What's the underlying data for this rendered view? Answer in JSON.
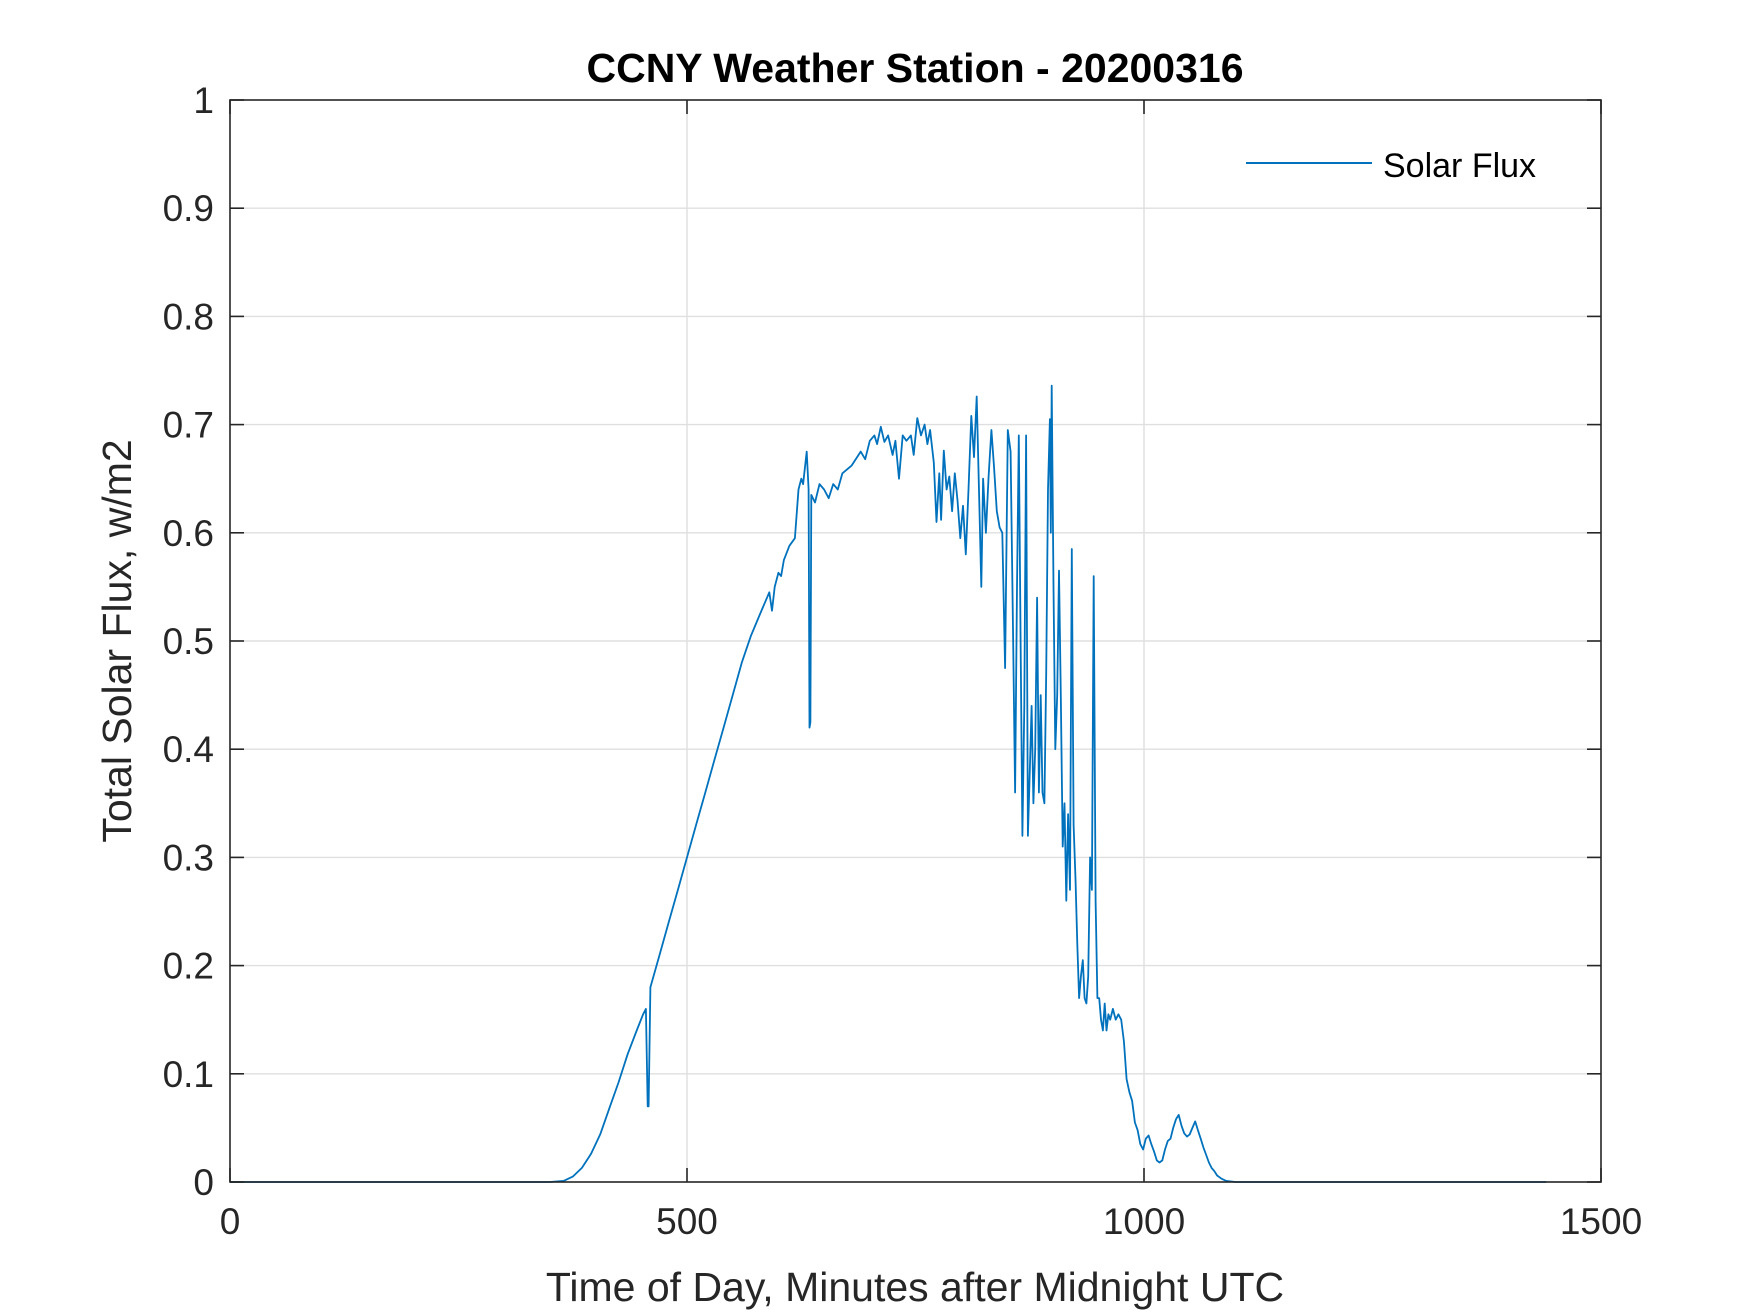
{
  "chart_data": {
    "type": "line",
    "title": "CCNY Weather Station - 20200316",
    "xlabel": "Time of Day, Minutes after Midnight UTC",
    "ylabel": "Total Solar Flux, w/m2",
    "xlim": [
      0,
      1500
    ],
    "ylim": [
      0,
      1
    ],
    "xticks": [
      0,
      500,
      1000,
      1500
    ],
    "yticks": [
      0,
      0.1,
      0.2,
      0.3,
      0.4,
      0.5,
      0.6,
      0.7,
      0.8,
      0.9,
      1
    ],
    "xtick_labels": [
      "0",
      "500",
      "1000",
      "1500"
    ],
    "ytick_labels": [
      "0",
      "0.1",
      "0.2",
      "0.3",
      "0.4",
      "0.5",
      "0.6",
      "0.7",
      "0.8",
      "0.9",
      "1"
    ],
    "grid": true,
    "legend_position": "top-right",
    "series": [
      {
        "name": "Solar Flux",
        "color": "#0072BD",
        "points": [
          [
            0,
            0
          ],
          [
            350,
            0
          ],
          [
            365,
            0.001
          ],
          [
            375,
            0.005
          ],
          [
            385,
            0.013
          ],
          [
            395,
            0.026
          ],
          [
            405,
            0.044
          ],
          [
            415,
            0.068
          ],
          [
            425,
            0.092
          ],
          [
            435,
            0.118
          ],
          [
            445,
            0.14
          ],
          [
            452,
            0.155
          ],
          [
            455,
            0.16
          ],
          [
            457,
            0.07
          ],
          [
            458,
            0.07
          ],
          [
            460,
            0.18
          ],
          [
            470,
            0.21
          ],
          [
            480,
            0.24
          ],
          [
            490,
            0.27
          ],
          [
            500,
            0.3
          ],
          [
            510,
            0.33
          ],
          [
            520,
            0.36
          ],
          [
            530,
            0.39
          ],
          [
            540,
            0.42
          ],
          [
            550,
            0.45
          ],
          [
            560,
            0.48
          ],
          [
            570,
            0.505
          ],
          [
            580,
            0.525
          ],
          [
            590,
            0.545
          ],
          [
            593,
            0.528
          ],
          [
            596,
            0.55
          ],
          [
            600,
            0.563
          ],
          [
            603,
            0.56
          ],
          [
            606,
            0.575
          ],
          [
            612,
            0.588
          ],
          [
            618,
            0.595
          ],
          [
            622,
            0.64
          ],
          [
            625,
            0.65
          ],
          [
            627,
            0.645
          ],
          [
            629,
            0.66
          ],
          [
            631,
            0.675
          ],
          [
            633,
            0.64
          ],
          [
            634,
            0.42
          ],
          [
            635,
            0.425
          ],
          [
            636,
            0.635
          ],
          [
            640,
            0.628
          ],
          [
            645,
            0.645
          ],
          [
            650,
            0.64
          ],
          [
            655,
            0.632
          ],
          [
            660,
            0.645
          ],
          [
            665,
            0.64
          ],
          [
            670,
            0.655
          ],
          [
            680,
            0.662
          ],
          [
            690,
            0.675
          ],
          [
            695,
            0.668
          ],
          [
            700,
            0.685
          ],
          [
            705,
            0.69
          ],
          [
            708,
            0.682
          ],
          [
            712,
            0.698
          ],
          [
            716,
            0.684
          ],
          [
            720,
            0.69
          ],
          [
            725,
            0.672
          ],
          [
            728,
            0.685
          ],
          [
            732,
            0.65
          ],
          [
            736,
            0.69
          ],
          [
            740,
            0.685
          ],
          [
            745,
            0.69
          ],
          [
            748,
            0.672
          ],
          [
            752,
            0.706
          ],
          [
            756,
            0.69
          ],
          [
            760,
            0.7
          ],
          [
            763,
            0.682
          ],
          [
            766,
            0.695
          ],
          [
            770,
            0.665
          ],
          [
            773,
            0.61
          ],
          [
            776,
            0.655
          ],
          [
            778,
            0.612
          ],
          [
            781,
            0.676
          ],
          [
            784,
            0.64
          ],
          [
            787,
            0.652
          ],
          [
            790,
            0.62
          ],
          [
            793,
            0.655
          ],
          [
            796,
            0.63
          ],
          [
            799,
            0.595
          ],
          [
            802,
            0.625
          ],
          [
            805,
            0.58
          ],
          [
            808,
            0.64
          ],
          [
            811,
            0.708
          ],
          [
            814,
            0.67
          ],
          [
            817,
            0.726
          ],
          [
            820,
            0.62
          ],
          [
            822,
            0.55
          ],
          [
            824,
            0.65
          ],
          [
            827,
            0.6
          ],
          [
            830,
            0.652
          ],
          [
            833,
            0.695
          ],
          [
            836,
            0.66
          ],
          [
            839,
            0.62
          ],
          [
            842,
            0.605
          ],
          [
            845,
            0.6
          ],
          [
            848,
            0.475
          ],
          [
            851,
            0.695
          ],
          [
            854,
            0.675
          ],
          [
            857,
            0.49
          ],
          [
            859,
            0.36
          ],
          [
            861,
            0.55
          ],
          [
            863,
            0.69
          ],
          [
            865,
            0.5
          ],
          [
            867,
            0.32
          ],
          [
            869,
            0.44
          ],
          [
            871,
            0.69
          ],
          [
            873,
            0.32
          ],
          [
            875,
            0.38
          ],
          [
            877,
            0.44
          ],
          [
            879,
            0.35
          ],
          [
            881,
            0.4
          ],
          [
            883,
            0.54
          ],
          [
            885,
            0.36
          ],
          [
            887,
            0.45
          ],
          [
            889,
            0.36
          ],
          [
            891,
            0.35
          ],
          [
            893,
            0.47
          ],
          [
            895,
            0.64
          ],
          [
            897,
            0.705
          ],
          [
            898,
            0.6
          ],
          [
            899,
            0.736
          ],
          [
            901,
            0.55
          ],
          [
            903,
            0.4
          ],
          [
            905,
            0.45
          ],
          [
            907,
            0.565
          ],
          [
            909,
            0.45
          ],
          [
            911,
            0.31
          ],
          [
            913,
            0.35
          ],
          [
            915,
            0.26
          ],
          [
            917,
            0.34
          ],
          [
            919,
            0.27
          ],
          [
            921,
            0.585
          ],
          [
            923,
            0.33
          ],
          [
            925,
            0.28
          ],
          [
            927,
            0.22
          ],
          [
            929,
            0.17
          ],
          [
            931,
            0.19
          ],
          [
            933,
            0.205
          ],
          [
            935,
            0.17
          ],
          [
            937,
            0.165
          ],
          [
            939,
            0.19
          ],
          [
            941,
            0.3
          ],
          [
            943,
            0.27
          ],
          [
            945,
            0.56
          ],
          [
            947,
            0.26
          ],
          [
            949,
            0.17
          ],
          [
            951,
            0.17
          ],
          [
            953,
            0.15
          ],
          [
            955,
            0.14
          ],
          [
            957,
            0.165
          ],
          [
            959,
            0.14
          ],
          [
            961,
            0.155
          ],
          [
            963,
            0.15
          ],
          [
            966,
            0.16
          ],
          [
            969,
            0.15
          ],
          [
            972,
            0.155
          ],
          [
            975,
            0.15
          ],
          [
            978,
            0.13
          ],
          [
            981,
            0.095
          ],
          [
            984,
            0.083
          ],
          [
            987,
            0.075
          ],
          [
            990,
            0.055
          ],
          [
            993,
            0.048
          ],
          [
            996,
            0.035
          ],
          [
            999,
            0.03
          ],
          [
            1002,
            0.04
          ],
          [
            1005,
            0.043
          ],
          [
            1008,
            0.035
          ],
          [
            1011,
            0.028
          ],
          [
            1014,
            0.02
          ],
          [
            1017,
            0.018
          ],
          [
            1020,
            0.02
          ],
          [
            1023,
            0.03
          ],
          [
            1026,
            0.038
          ],
          [
            1029,
            0.04
          ],
          [
            1032,
            0.05
          ],
          [
            1035,
            0.058
          ],
          [
            1038,
            0.062
          ],
          [
            1041,
            0.052
          ],
          [
            1044,
            0.045
          ],
          [
            1047,
            0.042
          ],
          [
            1050,
            0.044
          ],
          [
            1053,
            0.05
          ],
          [
            1056,
            0.056
          ],
          [
            1059,
            0.048
          ],
          [
            1062,
            0.04
          ],
          [
            1065,
            0.032
          ],
          [
            1068,
            0.025
          ],
          [
            1071,
            0.018
          ],
          [
            1074,
            0.013
          ],
          [
            1077,
            0.01
          ],
          [
            1080,
            0.006
          ],
          [
            1085,
            0.003
          ],
          [
            1090,
            0.001
          ],
          [
            1100,
            0
          ],
          [
            1200,
            0
          ],
          [
            1300,
            0
          ],
          [
            1440,
            0
          ]
        ]
      }
    ]
  }
}
